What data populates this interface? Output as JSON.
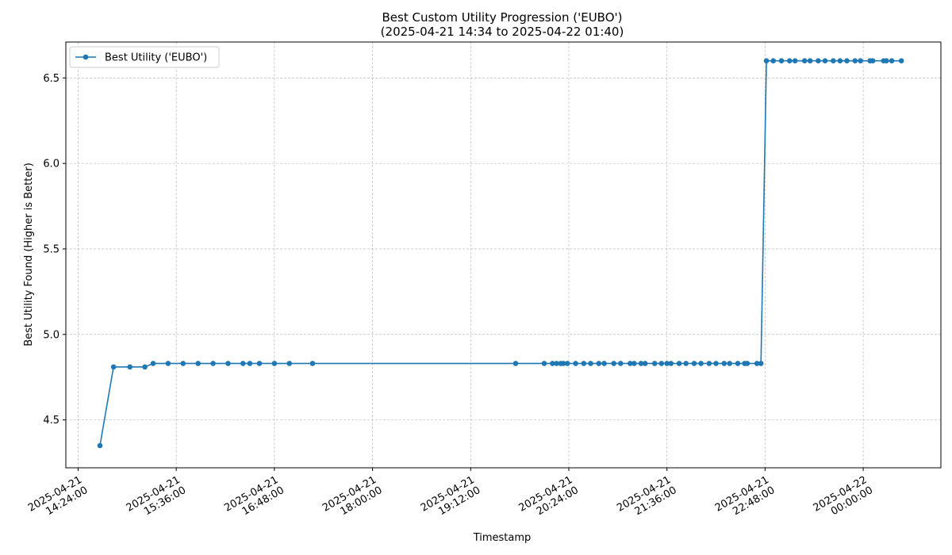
{
  "chart_data": {
    "type": "line",
    "title_line1": "Best Custom Utility Progression ('EUBO')",
    "title_line2": "(2025-04-21 14:34 to 2025-04-22 01:40)",
    "xlabel": "Timestamp",
    "ylabel": "Best Utility Found (Higher is Better)",
    "grid": true,
    "legend_position": "top-left",
    "xlim": [
      "2025-04-21 14:15:00",
      "2025-04-22 00:57:00"
    ],
    "ylim": [
      4.22,
      6.71
    ],
    "x_ticks": [
      {
        "value": "2025-04-21 14:24:00",
        "line1": "2025-04-21",
        "line2": "14:24:00"
      },
      {
        "value": "2025-04-21 15:36:00",
        "line1": "2025-04-21",
        "line2": "15:36:00"
      },
      {
        "value": "2025-04-21 16:48:00",
        "line1": "2025-04-21",
        "line2": "16:48:00"
      },
      {
        "value": "2025-04-21 18:00:00",
        "line1": "2025-04-21",
        "line2": "18:00:00"
      },
      {
        "value": "2025-04-21 19:12:00",
        "line1": "2025-04-21",
        "line2": "19:12:00"
      },
      {
        "value": "2025-04-21 20:24:00",
        "line1": "2025-04-21",
        "line2": "20:24:00"
      },
      {
        "value": "2025-04-21 21:36:00",
        "line1": "2025-04-21",
        "line2": "21:36:00"
      },
      {
        "value": "2025-04-21 22:48:00",
        "line1": "2025-04-21",
        "line2": "22:48:00"
      },
      {
        "value": "2025-04-22 00:00:00",
        "line1": "2025-04-22",
        "line2": "00:00:00"
      }
    ],
    "y_ticks": [
      {
        "value": 4.5,
        "label": "4.5"
      },
      {
        "value": 5.0,
        "label": "5.0"
      },
      {
        "value": 5.5,
        "label": "5.5"
      },
      {
        "value": 6.0,
        "label": "6.0"
      },
      {
        "value": 6.5,
        "label": "6.5"
      }
    ],
    "series": [
      {
        "name": "Best Utility ('EUBO')",
        "color": "#1f77b4",
        "x": [
          "2025-04-21 14:40:00",
          "2025-04-21 14:50:00",
          "2025-04-21 15:02:00",
          "2025-04-21 15:13:00",
          "2025-04-21 15:19:00",
          "2025-04-21 15:30:00",
          "2025-04-21 15:41:00",
          "2025-04-21 15:52:00",
          "2025-04-21 16:03:00",
          "2025-04-21 16:14:00",
          "2025-04-21 16:25:00",
          "2025-04-21 16:30:00",
          "2025-04-21 16:37:00",
          "2025-04-21 16:48:00",
          "2025-04-21 16:59:00",
          "2025-04-21 17:16:00",
          "2025-04-21 19:45:00",
          "2025-04-21 20:06:00",
          "2025-04-21 20:12:00",
          "2025-04-21 20:15:00",
          "2025-04-21 20:18:00",
          "2025-04-21 20:20:00",
          "2025-04-21 20:23:00",
          "2025-04-21 20:29:00",
          "2025-04-21 20:35:00",
          "2025-04-21 20:40:00",
          "2025-04-21 20:46:00",
          "2025-04-21 20:50:00",
          "2025-04-21 20:57:00",
          "2025-04-21 21:02:00",
          "2025-04-21 21:09:00",
          "2025-04-21 21:12:00",
          "2025-04-21 21:17:00",
          "2025-04-21 21:20:00",
          "2025-04-21 21:27:00",
          "2025-04-21 21:32:00",
          "2025-04-21 21:36:00",
          "2025-04-21 21:39:00",
          "2025-04-21 21:45:00",
          "2025-04-21 21:50:00",
          "2025-04-21 21:56:00",
          "2025-04-21 22:01:00",
          "2025-04-21 22:07:00",
          "2025-04-21 22:12:00",
          "2025-04-21 22:18:00",
          "2025-04-21 22:22:00",
          "2025-04-21 22:28:00",
          "2025-04-21 22:33:00",
          "2025-04-21 22:35:00",
          "2025-04-21 22:42:00",
          "2025-04-21 22:45:00",
          "2025-04-21 22:49:00",
          "2025-04-21 22:54:00",
          "2025-04-21 23:00:00",
          "2025-04-21 23:06:00",
          "2025-04-21 23:10:00",
          "2025-04-21 23:17:00",
          "2025-04-21 23:21:00",
          "2025-04-21 23:27:00",
          "2025-04-21 23:32:00",
          "2025-04-21 23:38:00",
          "2025-04-21 23:43:00",
          "2025-04-21 23:48:00",
          "2025-04-21 23:54:00",
          "2025-04-21 23:58:00",
          "2025-04-22 00:05:00",
          "2025-04-22 00:07:00",
          "2025-04-22 00:15:00",
          "2025-04-22 00:17:00",
          "2025-04-22 00:21:00",
          "2025-04-22 00:28:00"
        ],
        "y": [
          4.35,
          4.81,
          4.81,
          4.81,
          4.83,
          4.83,
          4.83,
          4.83,
          4.83,
          4.83,
          4.83,
          4.83,
          4.83,
          4.83,
          4.83,
          4.83,
          4.83,
          4.83,
          4.83,
          4.83,
          4.83,
          4.83,
          4.83,
          4.83,
          4.83,
          4.83,
          4.83,
          4.83,
          4.83,
          4.83,
          4.83,
          4.83,
          4.83,
          4.83,
          4.83,
          4.83,
          4.83,
          4.83,
          4.83,
          4.83,
          4.83,
          4.83,
          4.83,
          4.83,
          4.83,
          4.83,
          4.83,
          4.83,
          4.83,
          4.83,
          4.83,
          6.6,
          6.6,
          6.6,
          6.6,
          6.6,
          6.6,
          6.6,
          6.6,
          6.6,
          6.6,
          6.6,
          6.6,
          6.6,
          6.6,
          6.6,
          6.6,
          6.6,
          6.6,
          6.6,
          6.6
        ]
      }
    ]
  }
}
